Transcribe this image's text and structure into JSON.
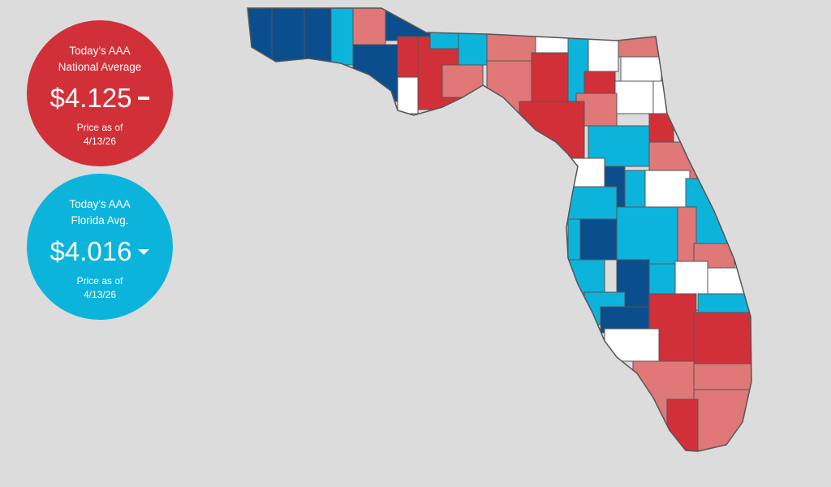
{
  "national": {
    "line1": "Today's AAA",
    "line2": "National Average",
    "price": "$4.125",
    "trend": "unchanged",
    "asof1": "Price as of",
    "asof2": "4/13/26",
    "color": "#d23038"
  },
  "florida": {
    "line1": "Today's AAA",
    "line2": "Florida Avg.",
    "price": "$4.016",
    "trend": "down",
    "asof1": "Price as of",
    "asof2": "4/13/26",
    "color": "#0cb4dc"
  },
  "map": {
    "region": "Florida counties",
    "tier_colors": {
      "D": "#0a4e8e",
      "B": "#0cb4dc",
      "W": "#ffffff",
      "P": "#e07878",
      "R": "#d23038"
    },
    "border_color": "#555555"
  }
}
